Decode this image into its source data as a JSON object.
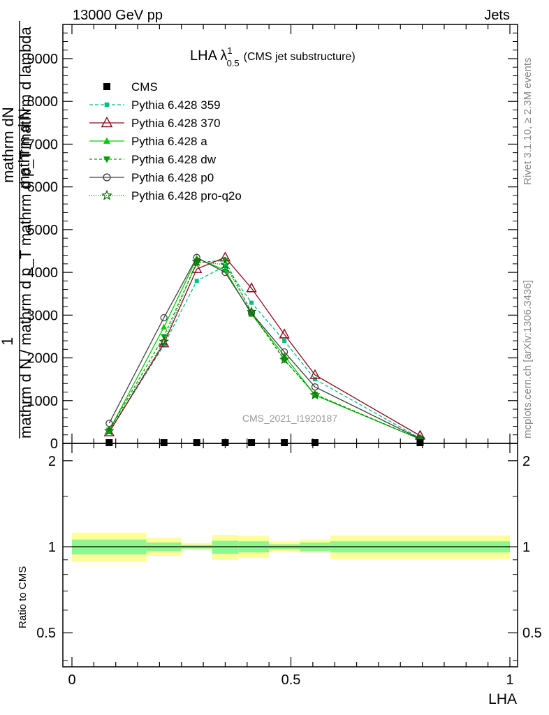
{
  "header": {
    "left": "13000 GeV pp",
    "right": "Jets"
  },
  "side": {
    "rivet": "Rivet 3.1.10, ≥ 2.3M events",
    "mcplots": "mcplots.cern.ch [arXiv:1306.3436]"
  },
  "plot_title": {
    "main": "LHA λ",
    "sup": "1",
    "sub": "0.5",
    "suffix": "(CMS jet substructure)"
  },
  "watermark": "CMS_2021_I1920187",
  "ylabel_main": {
    "one": "1",
    "numerator": "mathrm d N",
    "denominator_top": "mathrm dN",
    "denominator": "mathrm d N / mathrm d p_T mathrm d p_T mathrm d lambda"
  },
  "ylabel_ratio": "Ratio to CMS",
  "xlabel": "LHA",
  "colors": {
    "cms": "#000000",
    "p359": "#00c081",
    "p370": "#8b0a1c",
    "pa": "#00d000",
    "pdw": "#00a000",
    "pp0": "#404040",
    "pq2o": "#006e00",
    "band_inner": "#90f590",
    "band_outer": "#ffff99"
  },
  "chart_data": [
    {
      "type": "line",
      "panel": "main",
      "x": [
        0.085,
        0.21,
        0.285,
        0.35,
        0.41,
        0.485,
        0.555,
        0.795
      ],
      "xlim": [
        0,
        1
      ],
      "ylim": [
        0,
        9800
      ],
      "yticks": [
        0,
        1000,
        2000,
        3000,
        4000,
        5000,
        6000,
        7000,
        8000,
        9000
      ],
      "ytick_labels": [
        "0",
        "1000",
        "2000",
        "3000",
        "4000",
        "5000",
        "6000",
        "7000",
        "8000",
        "9000"
      ],
      "series": [
        {
          "name": "CMS",
          "key": "cms",
          "marker": "square",
          "values": [
            0,
            0,
            0,
            0,
            0,
            0,
            0,
            0
          ]
        },
        {
          "name": "Pythia 6.428 359",
          "key": "p359",
          "marker": "small-square",
          "dash": "5,3",
          "values": [
            270,
            2300,
            3800,
            4150,
            3290,
            2400,
            1500,
            120
          ]
        },
        {
          "name": "Pythia 6.428 370",
          "key": "p370",
          "marker": "open-triangle",
          "dash": "",
          "values": [
            260,
            2340,
            4080,
            4350,
            3630,
            2550,
            1600,
            180
          ]
        },
        {
          "name": "Pythia 6.428 a",
          "key": "pa",
          "marker": "triangle",
          "dash": "",
          "values": [
            300,
            2720,
            4330,
            4050,
            3020,
            2050,
            1130,
            100
          ]
        },
        {
          "name": "Pythia 6.428 dw",
          "key": "pdw",
          "marker": "triangle-down",
          "dash": "4,3",
          "values": [
            310,
            2500,
            4230,
            4280,
            3050,
            1950,
            1150,
            100
          ]
        },
        {
          "name": "Pythia 6.428 p0",
          "key": "pp0",
          "marker": "open-circle",
          "dash": "",
          "values": [
            470,
            2940,
            4350,
            4000,
            3050,
            2140,
            1320,
            110
          ]
        },
        {
          "name": "Pythia 6.428 pro-q2o",
          "key": "pq2o",
          "marker": "star",
          "dash": "1,2",
          "values": [
            290,
            2380,
            4250,
            4180,
            3080,
            1960,
            1130,
            100
          ]
        }
      ]
    },
    {
      "type": "area",
      "panel": "ratio",
      "ylabel": "Ratio to CMS",
      "xlabel": "LHA",
      "xlim": [
        0,
        1
      ],
      "ylim": [
        0.38,
        2.3
      ],
      "scale": "log",
      "yticks": [
        0.5,
        1,
        2
      ],
      "ytick_labels": [
        "0.5",
        "1",
        "2"
      ],
      "xticks": [
        0,
        0.5,
        1
      ],
      "xtick_labels": [
        "0",
        "0.5",
        "1"
      ],
      "bins": [
        [
          0,
          0.17
        ],
        [
          0.17,
          0.25
        ],
        [
          0.25,
          0.32
        ],
        [
          0.32,
          0.38
        ],
        [
          0.38,
          0.45
        ],
        [
          0.45,
          0.52
        ],
        [
          0.52,
          0.59
        ],
        [
          0.59,
          1.0
        ]
      ],
      "reference": 1,
      "band_inner": [
        [
          0.94,
          1.06
        ],
        [
          0.965,
          1.035
        ],
        [
          0.985,
          1.015
        ],
        [
          0.945,
          1.05
        ],
        [
          0.955,
          1.045
        ],
        [
          0.98,
          1.02
        ],
        [
          0.965,
          1.035
        ],
        [
          0.955,
          1.045
        ]
      ],
      "band_outer": [
        [
          0.885,
          1.12
        ],
        [
          0.93,
          1.075
        ],
        [
          0.975,
          1.03
        ],
        [
          0.9,
          1.1
        ],
        [
          0.915,
          1.09
        ],
        [
          0.965,
          1.045
        ],
        [
          0.955,
          1.06
        ],
        [
          0.905,
          1.095
        ]
      ]
    }
  ]
}
